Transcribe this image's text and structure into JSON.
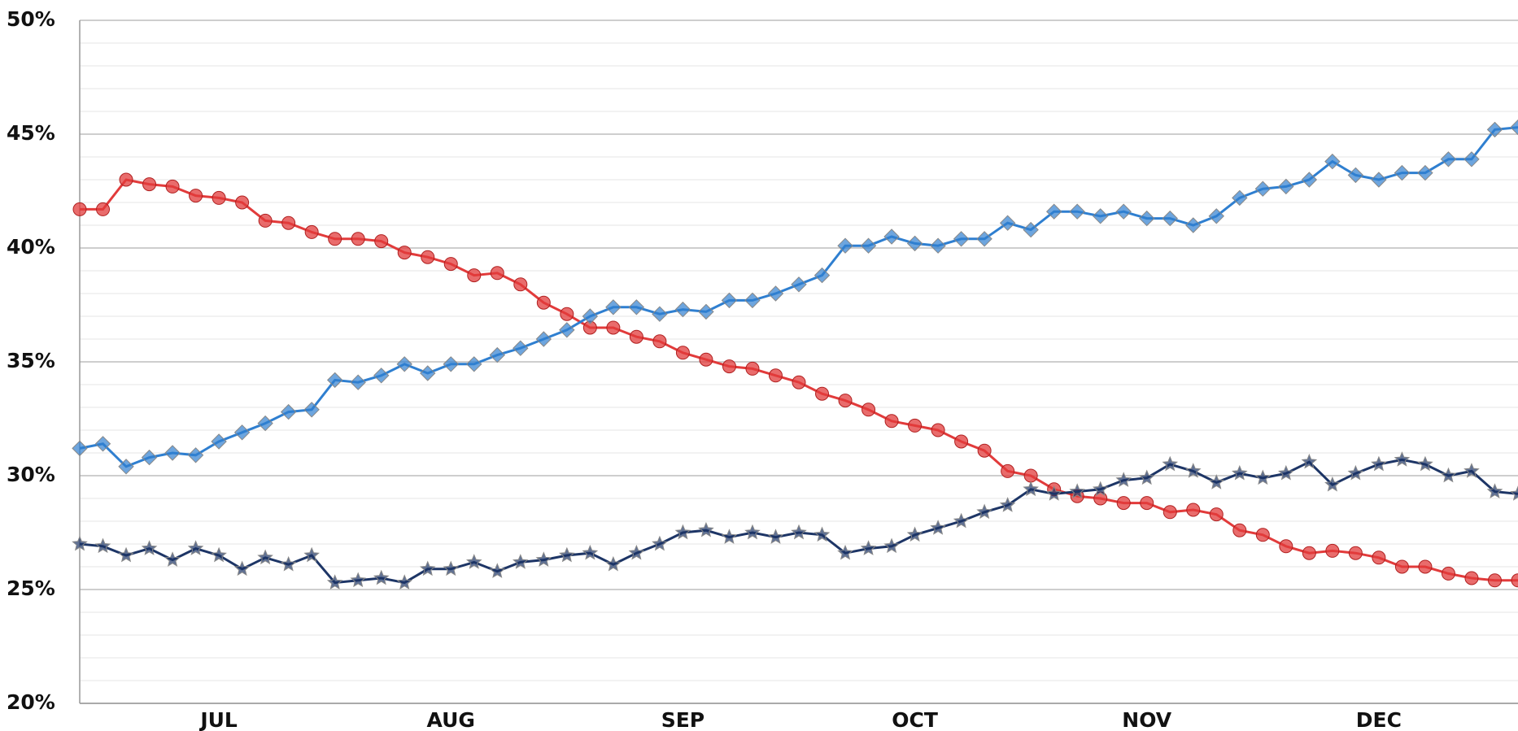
{
  "chart_data": {
    "type": "line",
    "categories": [
      null,
      null,
      null,
      null,
      null,
      null,
      "JUL",
      null,
      null,
      null,
      null,
      null,
      null,
      null,
      null,
      null,
      "AUG",
      null,
      null,
      null,
      null,
      null,
      null,
      null,
      null,
      null,
      "SEP",
      null,
      null,
      null,
      null,
      null,
      null,
      null,
      null,
      null,
      "OCT",
      null,
      null,
      null,
      null,
      null,
      null,
      null,
      null,
      null,
      "NOV",
      null,
      null,
      null,
      null,
      null,
      null,
      null,
      null,
      null,
      "DEC",
      null,
      null,
      null,
      null,
      null,
      null
    ],
    "series": [
      {
        "color": "#e23b3b",
        "marker": "circle",
        "values": [
          41.7,
          41.7,
          43.0,
          42.8,
          42.7,
          42.3,
          42.2,
          42.0,
          41.2,
          41.1,
          40.7,
          40.4,
          40.4,
          40.3,
          39.8,
          39.6,
          39.3,
          38.8,
          38.9,
          38.4,
          37.6,
          37.1,
          36.5,
          36.5,
          36.1,
          35.9,
          35.4,
          35.1,
          34.8,
          34.7,
          34.4,
          34.1,
          33.6,
          33.3,
          32.9,
          32.4,
          32.2,
          32.0,
          31.5,
          31.1,
          30.2,
          30.0,
          29.4,
          29.1,
          29.0,
          28.8,
          28.8,
          28.4,
          28.5,
          28.3,
          27.6,
          27.4,
          26.9,
          26.6,
          26.7,
          26.6,
          26.4,
          26.0,
          26.0,
          25.7,
          25.5,
          25.4,
          25.4
        ]
      },
      {
        "color": "#2f7fd0",
        "marker": "diamond",
        "values": [
          31.2,
          31.4,
          30.4,
          30.8,
          31.0,
          30.9,
          31.5,
          31.9,
          32.3,
          32.8,
          32.9,
          34.2,
          34.1,
          34.4,
          34.9,
          34.5,
          34.9,
          34.9,
          35.3,
          35.6,
          36.0,
          36.4,
          37.0,
          37.4,
          37.4,
          37.1,
          37.3,
          37.2,
          37.7,
          37.7,
          38.0,
          38.4,
          38.8,
          40.1,
          40.1,
          40.5,
          40.2,
          40.1,
          40.4,
          40.4,
          41.1,
          40.8,
          41.6,
          41.6,
          41.4,
          41.6,
          41.3,
          41.3,
          41.0,
          41.4,
          42.2,
          42.6,
          42.7,
          43.0,
          43.8,
          43.2,
          43.0,
          43.3,
          43.3,
          43.9,
          43.9,
          45.2,
          45.3
        ]
      },
      {
        "color": "#1d3566",
        "marker": "star",
        "values": [
          27.0,
          26.9,
          26.5,
          26.8,
          26.3,
          26.8,
          26.5,
          25.9,
          26.4,
          26.1,
          26.5,
          25.3,
          25.4,
          25.5,
          25.3,
          25.9,
          25.9,
          26.2,
          25.8,
          26.2,
          26.3,
          26.5,
          26.6,
          26.1,
          26.6,
          27.0,
          27.5,
          27.6,
          27.3,
          27.5,
          27.3,
          27.5,
          27.4,
          26.6,
          26.8,
          26.9,
          27.4,
          27.7,
          28.0,
          28.4,
          28.7,
          29.4,
          29.2,
          29.3,
          29.4,
          29.8,
          29.9,
          30.5,
          30.2,
          29.7,
          30.1,
          29.9,
          30.1,
          30.6,
          29.6,
          30.1,
          30.5,
          30.7,
          30.5,
          30.0,
          30.2,
          29.3,
          29.2
        ]
      }
    ],
    "ylim": [
      20,
      50
    ],
    "yticks": [
      {
        "value": 20,
        "label": "20%"
      },
      {
        "value": 25,
        "label": "25%"
      },
      {
        "value": 30,
        "label": "30%"
      },
      {
        "value": 35,
        "label": "35%"
      },
      {
        "value": 40,
        "label": "40%"
      },
      {
        "value": 45,
        "label": "45%"
      },
      {
        "value": 50,
        "label": "50%"
      }
    ],
    "minor_yticks": [
      21,
      22,
      23,
      24,
      26,
      27,
      28,
      29,
      31,
      32,
      33,
      34,
      36,
      37,
      38,
      39,
      41,
      42,
      43,
      44,
      46,
      47,
      48,
      49
    ],
    "grid": true
  }
}
